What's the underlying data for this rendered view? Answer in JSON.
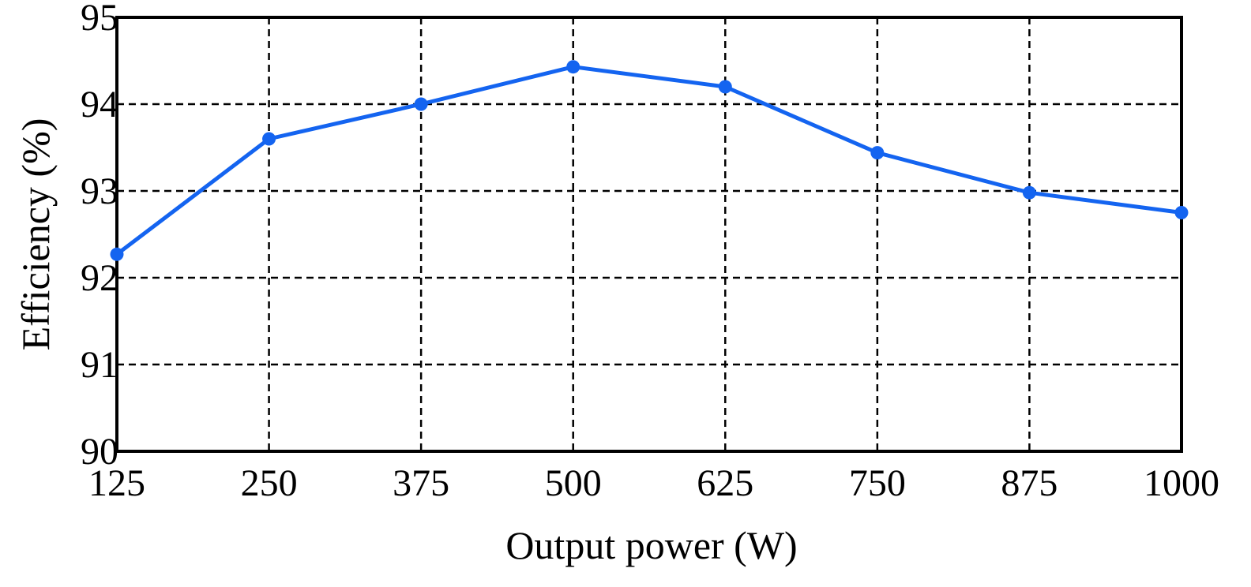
{
  "chart_data": {
    "type": "line",
    "title": "",
    "xlabel": "Output power (W)",
    "ylabel": "Efficiency (%)",
    "x_ticks": [
      "125",
      "250",
      "375",
      "500",
      "625",
      "750",
      "875",
      "1000"
    ],
    "y_ticks": [
      "90",
      "91",
      "92",
      "93",
      "94",
      "95"
    ],
    "xlim": [
      125,
      1000
    ],
    "ylim": [
      90,
      95
    ],
    "grid": true,
    "series": [
      {
        "color": "#1464f0",
        "x": [
          125,
          250,
          375,
          500,
          625,
          750,
          875,
          1000
        ],
        "y": [
          92.27,
          93.6,
          94.0,
          94.43,
          94.2,
          93.44,
          92.98,
          92.75
        ]
      }
    ]
  }
}
